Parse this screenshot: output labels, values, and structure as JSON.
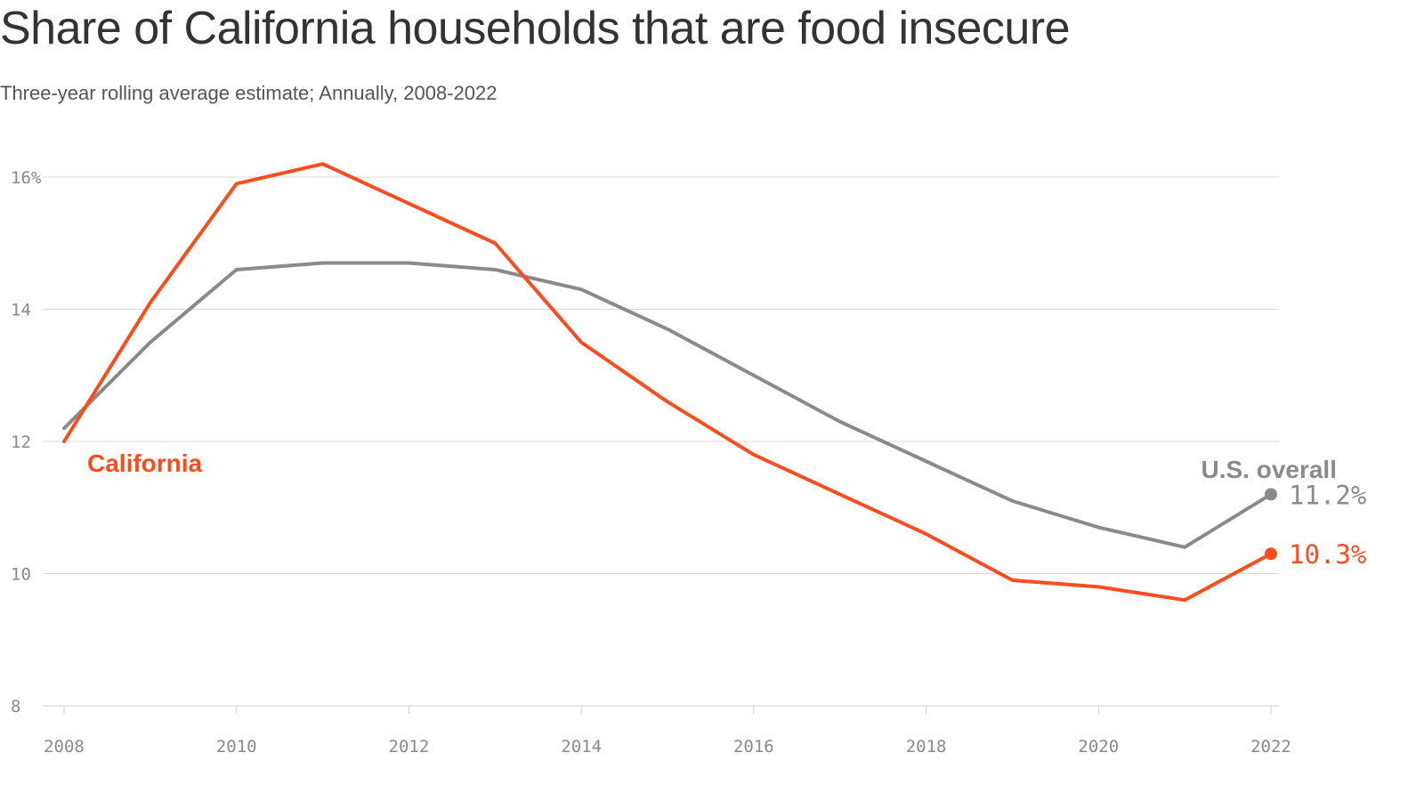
{
  "title": "Share of California households that are food insecure",
  "subtitle": "Three-year rolling average estimate; Annually, 2008-2022",
  "colors": {
    "california": "#fa4d1e",
    "us": "#8a8a8a"
  },
  "chart_data": {
    "type": "line",
    "title": "Share of California households that are food insecure",
    "subtitle": "Three-year rolling average estimate; Annually, 2008-2022",
    "xlabel": "",
    "ylabel": "",
    "x": [
      2008,
      2009,
      2010,
      2011,
      2012,
      2013,
      2014,
      2015,
      2016,
      2017,
      2018,
      2019,
      2020,
      2021,
      2022
    ],
    "x_ticks": [
      2008,
      2010,
      2012,
      2014,
      2016,
      2018,
      2020,
      2022
    ],
    "x_tick_labels": [
      "2008",
      "2010",
      "2012",
      "2014",
      "2016",
      "2018",
      "2020",
      "2022"
    ],
    "xlim": [
      2008,
      2022
    ],
    "y_ticks": [
      8,
      10,
      12,
      14,
      16
    ],
    "y_tick_labels": [
      "8",
      "10",
      "12",
      "14",
      "16%"
    ],
    "ylim": [
      8,
      16
    ],
    "grid": true,
    "series": [
      {
        "name": "California",
        "label": "California",
        "end_label": "10.3%",
        "values": [
          12.0,
          14.1,
          15.9,
          16.2,
          15.6,
          15.0,
          13.5,
          12.6,
          11.8,
          11.2,
          10.6,
          9.9,
          9.8,
          9.6,
          10.3
        ]
      },
      {
        "name": "U.S. overall",
        "label": "U.S. overall",
        "end_label": "11.2%",
        "values": [
          12.2,
          13.5,
          14.6,
          14.7,
          14.7,
          14.6,
          14.3,
          13.7,
          13.0,
          12.3,
          11.7,
          11.1,
          10.7,
          10.4,
          11.2
        ]
      }
    ]
  }
}
